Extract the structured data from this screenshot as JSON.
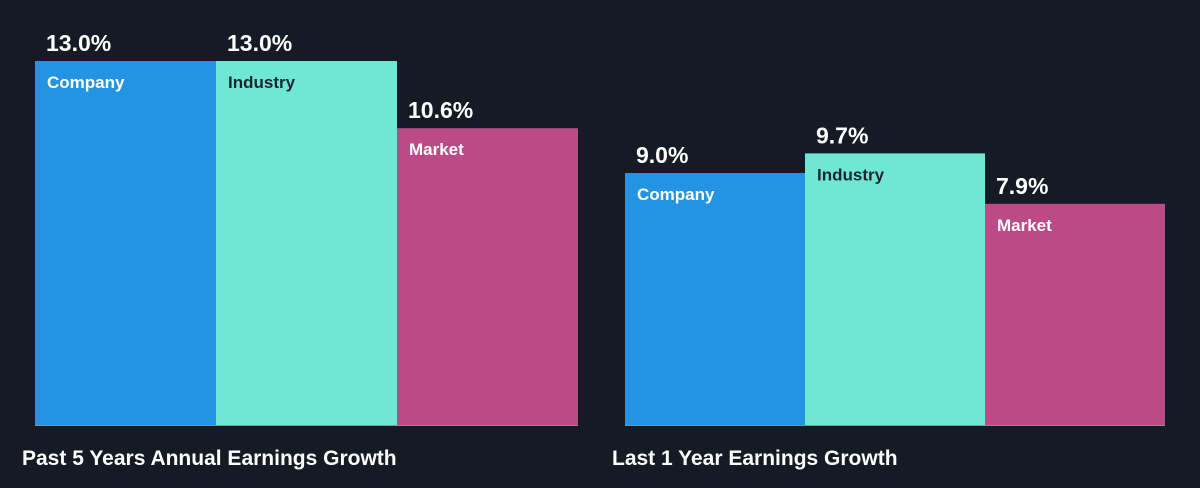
{
  "chart_data": [
    {
      "type": "bar",
      "title": "Past 5 Years Annual Earnings Growth",
      "categories": [
        "Company",
        "Industry",
        "Market"
      ],
      "values": [
        13.0,
        13.0,
        10.6
      ],
      "value_labels": [
        "13.0%",
        "13.0%",
        "10.6%"
      ],
      "colors": [
        "#2394e1",
        "#6fe7d5",
        "#bc4a87"
      ],
      "label_colors": [
        "#ffffff",
        "#1d2430",
        "#ffffff"
      ],
      "ylim": [
        0,
        13.0
      ],
      "grid": false
    },
    {
      "type": "bar",
      "title": "Last 1 Year Earnings Growth",
      "categories": [
        "Company",
        "Industry",
        "Market"
      ],
      "values": [
        9.0,
        9.7,
        7.9
      ],
      "value_labels": [
        "9.0%",
        "9.7%",
        "7.9%"
      ],
      "colors": [
        "#2394e1",
        "#6fe7d5",
        "#bc4a87"
      ],
      "label_colors": [
        "#ffffff",
        "#1d2430",
        "#ffffff"
      ],
      "ylim": [
        0,
        13.0
      ],
      "grid": false
    }
  ],
  "colors": {
    "background": "#151b24",
    "text": "#ffffff",
    "baseline": "#8a9099"
  }
}
